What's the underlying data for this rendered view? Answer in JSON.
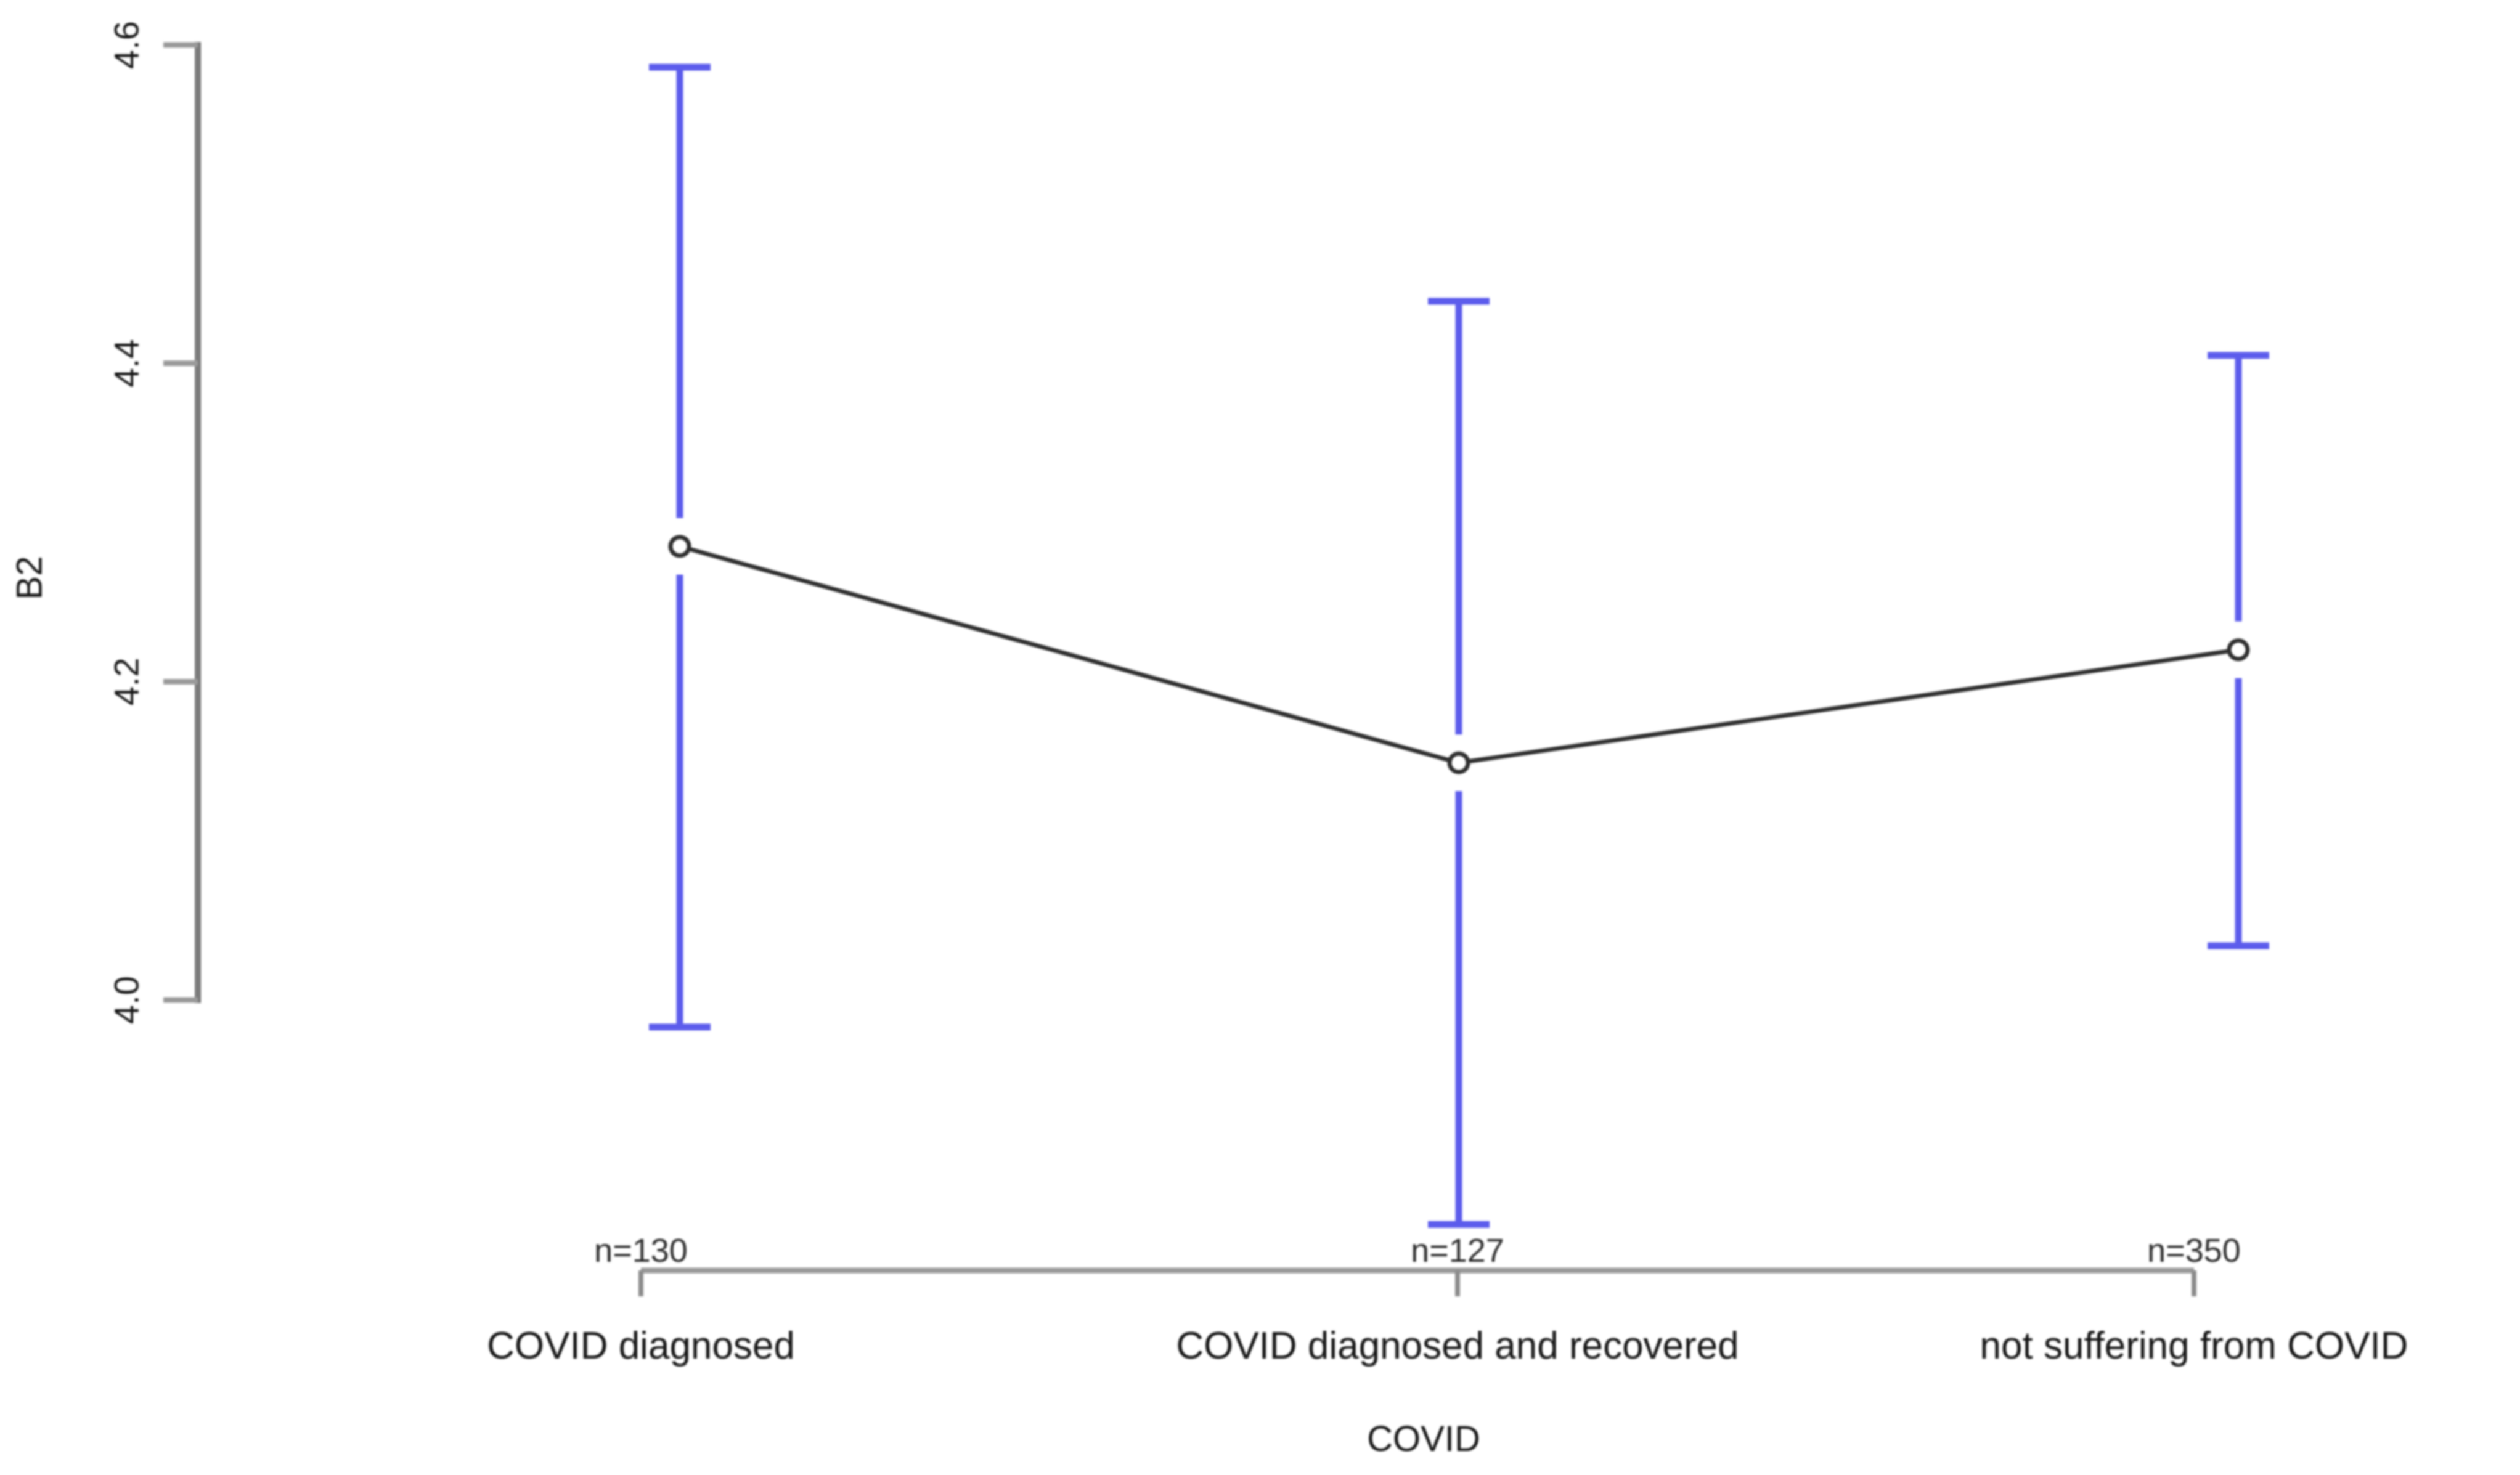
{
  "figure": {
    "background": "#ffffff"
  },
  "chart_data": {
    "type": "line",
    "subtype": "group-means-with-ci-error-bars",
    "title": "",
    "xlabel": "COVID",
    "ylabel": "B2",
    "categories": [
      "COVID diagnosed",
      "COVID diagnosed and recovered",
      "not suffering from COVID"
    ],
    "groups": [
      {
        "label": "COVID diagnosed",
        "n_label": "n=130",
        "n": 130,
        "mean": 4.285,
        "ci_low": 3.983,
        "ci_high": 4.586
      },
      {
        "label": "COVID diagnosed and recovered",
        "n_label": "n=127",
        "n": 127,
        "mean": 4.149,
        "ci_low": 3.859,
        "ci_high": 4.439
      },
      {
        "label": "not suffering from COVID",
        "n_label": "n=350",
        "n": 350,
        "mean": 4.22,
        "ci_low": 4.034,
        "ci_high": 4.405
      }
    ],
    "y_axis": {
      "ticks": [
        "4.0",
        "4.2",
        "4.4",
        "4.6"
      ],
      "tick_values": [
        4.0,
        4.2,
        4.4,
        4.6
      ],
      "range_shown": [
        4.0,
        4.6
      ]
    },
    "grid": false,
    "legend": null,
    "colors": {
      "error_bar": "#5c5cec",
      "series_line": "#2f2f2f",
      "marker_stroke": "#2f2f2f",
      "marker_fill": "#ffffff",
      "axis_y": "#7a7a7a",
      "y_tick": "#9a9a9a",
      "axis_x": "#9a9a9a",
      "x_tick": "#8c8c8c",
      "text": "#161616",
      "n_label_text": "#2e2e2e"
    }
  }
}
